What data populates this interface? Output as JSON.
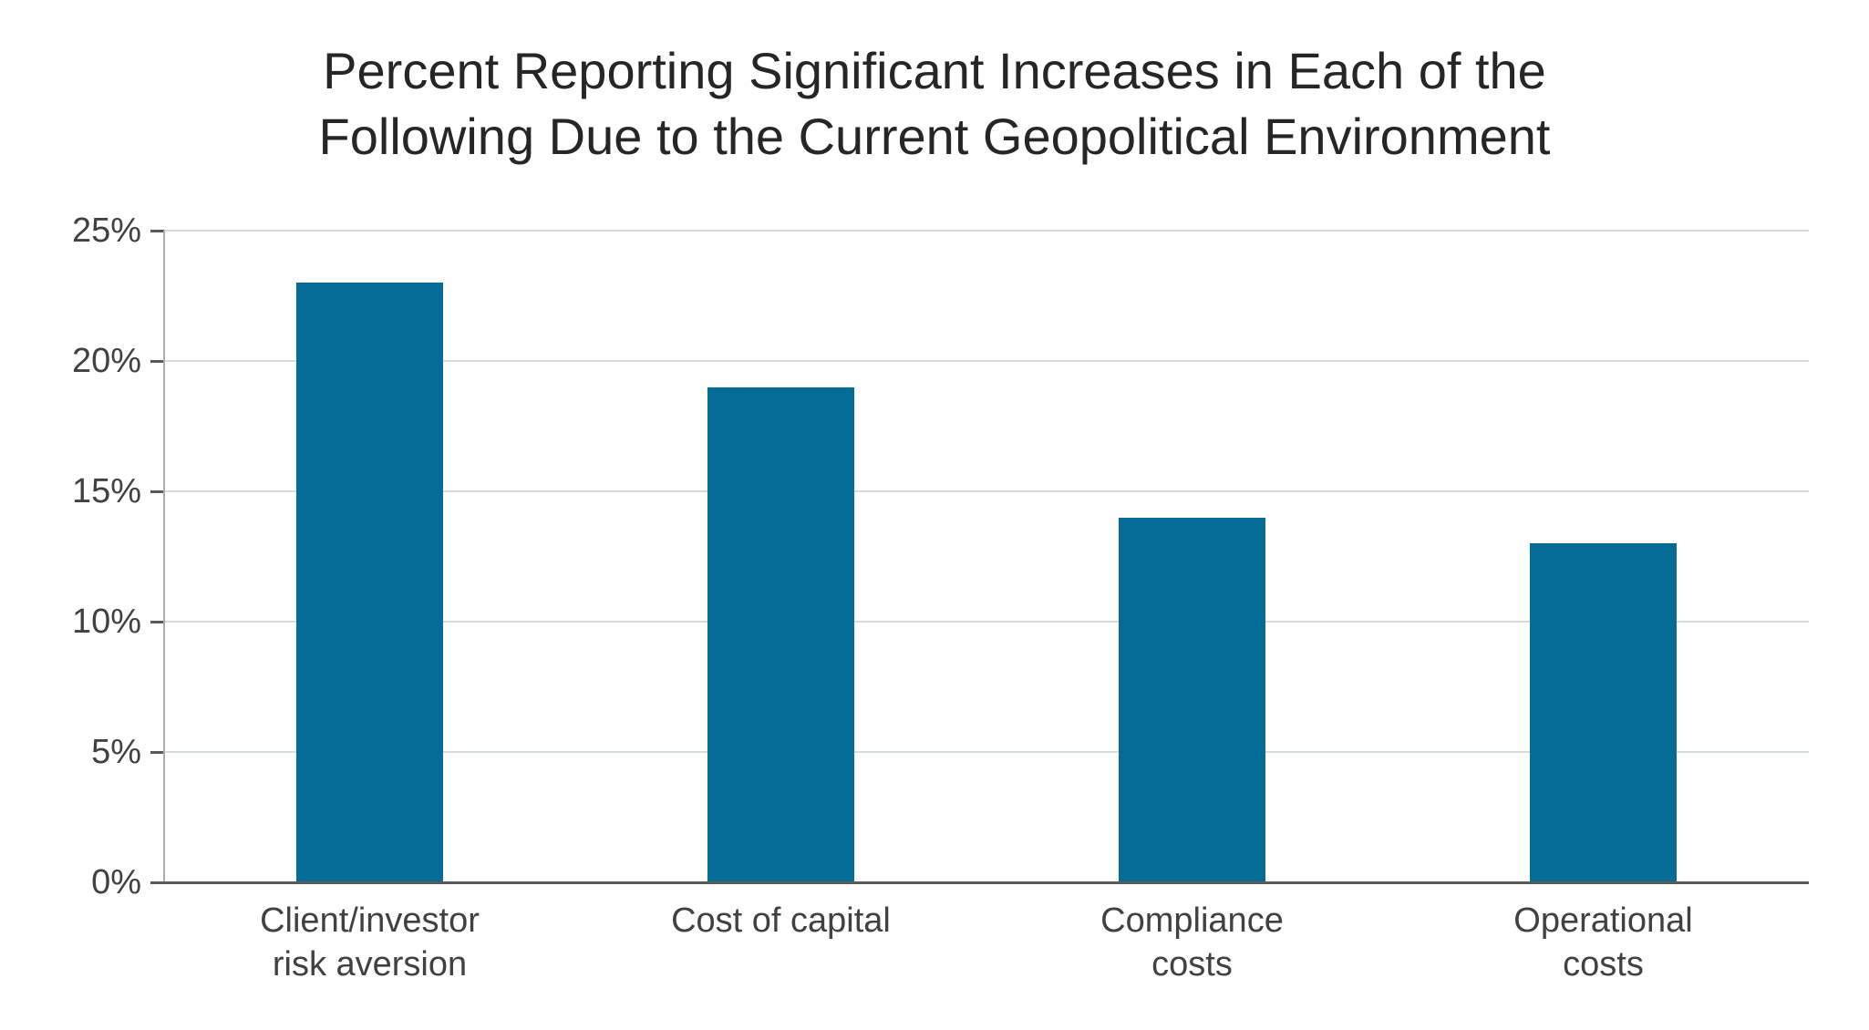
{
  "chart_data": {
    "type": "bar",
    "title": "Percent Reporting Significant Increases in Each of the\nFollowing Due to the Current Geopolitical Environment",
    "categories": [
      "Client/investor risk aversion",
      "Cost of capital",
      "Compliance costs",
      "Operational costs"
    ],
    "categories_display": [
      "Client/investor\nrisk aversion",
      "Cost of capital",
      "Compliance\ncosts",
      "Operational\ncosts"
    ],
    "values": [
      23,
      19,
      14,
      13
    ],
    "unit": "%",
    "xlabel": "",
    "ylabel": "",
    "ylim": [
      0,
      25
    ],
    "y_ticks": [
      {
        "value": 25,
        "label": "25%"
      },
      {
        "value": 20,
        "label": "20%"
      },
      {
        "value": 15,
        "label": "15%"
      },
      {
        "value": 10,
        "label": "10%"
      },
      {
        "value": 5,
        "label": "5%"
      },
      {
        "value": 0,
        "label": "0%"
      }
    ],
    "grid": "horizontal",
    "legend": "none",
    "colors": {
      "bar": "#056c97",
      "gridline": "#d6dbdd",
      "y_axis_line": "#a8acae",
      "x_axis_line": "#58595b",
      "tick_mark": "#58595b",
      "tick_label": "#414042",
      "title": "#262626",
      "background": "#ffffff"
    }
  }
}
